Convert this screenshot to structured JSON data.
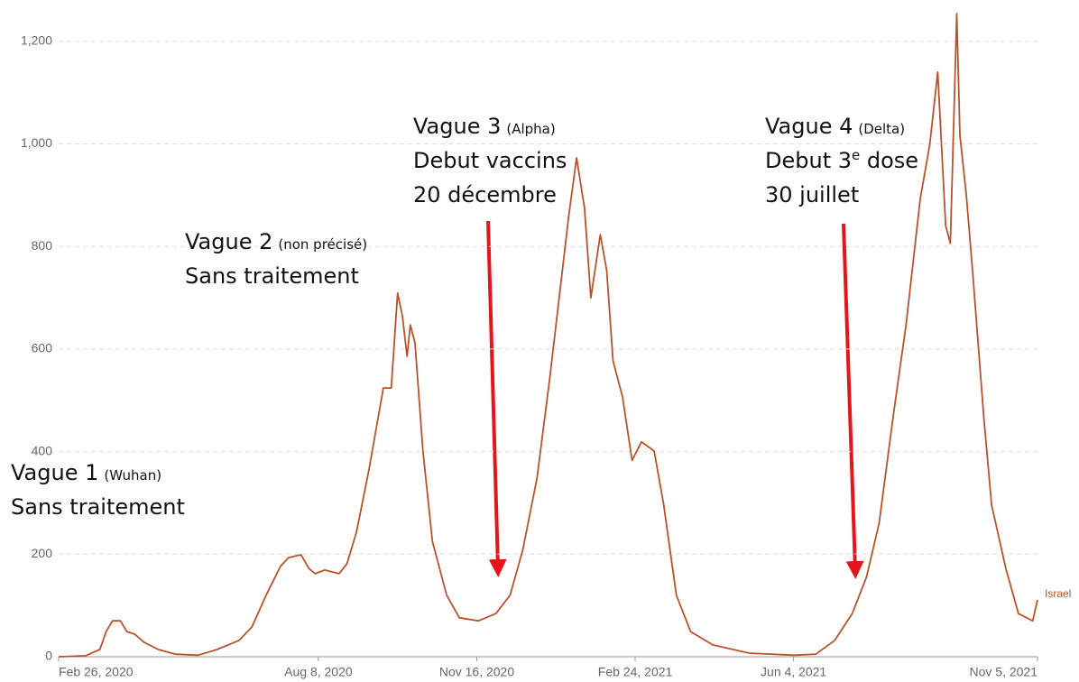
{
  "chart_data": {
    "type": "line",
    "x": [
      "2020-02-26",
      "2020-03-14",
      "2020-03-23",
      "2020-03-27",
      "2020-03-31",
      "2020-04-05",
      "2020-04-09",
      "2020-04-14",
      "2020-04-20",
      "2020-04-29",
      "2020-05-10",
      "2020-05-24",
      "2020-06-05",
      "2020-06-19",
      "2020-06-27",
      "2020-07-06",
      "2020-07-15",
      "2020-07-20",
      "2020-07-28",
      "2020-08-02",
      "2020-08-06",
      "2020-08-12",
      "2020-08-21",
      "2020-08-26",
      "2020-09-01",
      "2020-09-09",
      "2020-09-18",
      "2020-09-23",
      "2020-09-27",
      "2020-09-30",
      "2020-10-03",
      "2020-10-05",
      "2020-10-08",
      "2020-10-13",
      "2020-10-19",
      "2020-10-28",
      "2020-11-05",
      "2020-11-17",
      "2020-11-28",
      "2020-12-07",
      "2020-12-15",
      "2020-12-24",
      "2021-01-01",
      "2021-01-07",
      "2021-01-13",
      "2021-01-18",
      "2021-01-23",
      "2021-01-27",
      "2021-02-02",
      "2021-02-06",
      "2021-02-10",
      "2021-02-16",
      "2021-02-22",
      "2021-02-28",
      "2021-03-08",
      "2021-03-14",
      "2021-03-22",
      "2021-03-31",
      "2021-04-14",
      "2021-05-07",
      "2021-06-04",
      "2021-06-18",
      "2021-06-30",
      "2021-07-11",
      "2021-07-20",
      "2021-07-28",
      "2021-08-06",
      "2021-08-14",
      "2021-08-23",
      "2021-08-29",
      "2021-09-03",
      "2021-09-08",
      "2021-09-11",
      "2021-09-15",
      "2021-09-17",
      "2021-09-21",
      "2021-09-25",
      "2021-10-02",
      "2021-10-07",
      "2021-10-16",
      "2021-10-24",
      "2021-11-02",
      "2021-11-05"
    ],
    "series": [
      {
        "name": "Israel",
        "color": "#b9532c",
        "values": [
          0,
          2,
          14,
          49,
          70,
          70,
          49,
          44,
          28,
          14,
          5,
          3,
          14,
          32,
          58,
          120,
          176,
          193,
          199,
          172,
          162,
          169,
          162,
          181,
          243,
          366,
          524,
          524,
          709,
          665,
          586,
          647,
          612,
          401,
          225,
          120,
          76,
          70,
          84,
          120,
          208,
          348,
          542,
          700,
          858,
          973,
          875,
          700,
          823,
          753,
          577,
          507,
          383,
          419,
          401,
          296,
          120,
          49,
          23,
          7,
          3,
          5,
          32,
          84,
          155,
          260,
          471,
          647,
          894,
          999,
          1140,
          841,
          806,
          1254,
          1017,
          902,
          753,
          471,
          296,
          172,
          84,
          70,
          111
        ]
      }
    ],
    "xlim": [
      "2020-02-26",
      "2021-11-05"
    ],
    "xticks": [
      {
        "value": "2020-02-26",
        "label": "Feb 26, 2020"
      },
      {
        "value": "2020-08-08",
        "label": "Aug 8, 2020"
      },
      {
        "value": "2020-11-16",
        "label": "Nov 16, 2020"
      },
      {
        "value": "2021-02-24",
        "label": "Feb 24, 2021"
      },
      {
        "value": "2021-06-04",
        "label": "Jun 4, 2021"
      },
      {
        "value": "2021-11-05",
        "label": "Nov 5, 2021"
      }
    ],
    "ylim": [
      0,
      1250
    ],
    "yticks": [
      0,
      200,
      400,
      600,
      800,
      1000,
      {
        "value": 1000,
        "label": "1,000"
      },
      {
        "value": 1200,
        "label": "1,200"
      }
    ],
    "grid": true,
    "annotations": [
      {
        "title": "Vague 1",
        "note": "(Wuhan)",
        "lines": [
          [
            "Sans traitement"
          ]
        ]
      },
      {
        "title": "Vague 2",
        "note": "(non précisé)",
        "lines": [
          [
            "Sans traitement"
          ]
        ]
      },
      {
        "title": "Vague 3",
        "note": "(Alpha)",
        "lines": [
          [
            "Debut vaccins"
          ],
          [
            "20 décembre"
          ]
        ]
      },
      {
        "title": "Vague 4",
        "note": "(Delta)",
        "lines": [
          [
            "Debut 3",
            "e",
            " dose"
          ],
          [
            "30 juillet"
          ]
        ]
      }
    ]
  }
}
